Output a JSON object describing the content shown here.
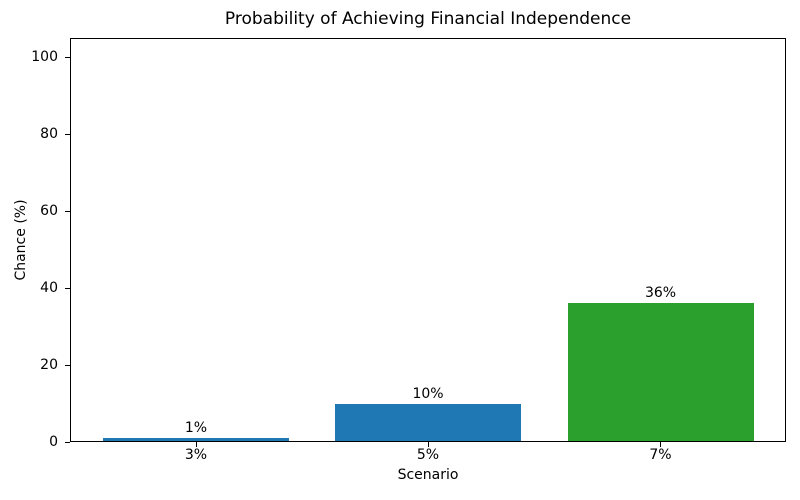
{
  "chart_data": {
    "type": "bar",
    "title": "Probability of Achieving Financial Independence",
    "xlabel": "Scenario",
    "ylabel": "Chance (%)",
    "categories": [
      "3%",
      "5%",
      "7%"
    ],
    "values": [
      1,
      10,
      36
    ],
    "data_labels": [
      "1%",
      "10%",
      "36%"
    ],
    "bar_colors": [
      "#1f77b4",
      "#1f77b4",
      "#2ca02c"
    ],
    "yticks": [
      0,
      20,
      40,
      60,
      80,
      100
    ],
    "ylim": [
      0,
      105
    ],
    "grid": false,
    "legend": "none",
    "background_color": "#ffffff",
    "text_color": "#000000",
    "spine_color": "#000000"
  }
}
